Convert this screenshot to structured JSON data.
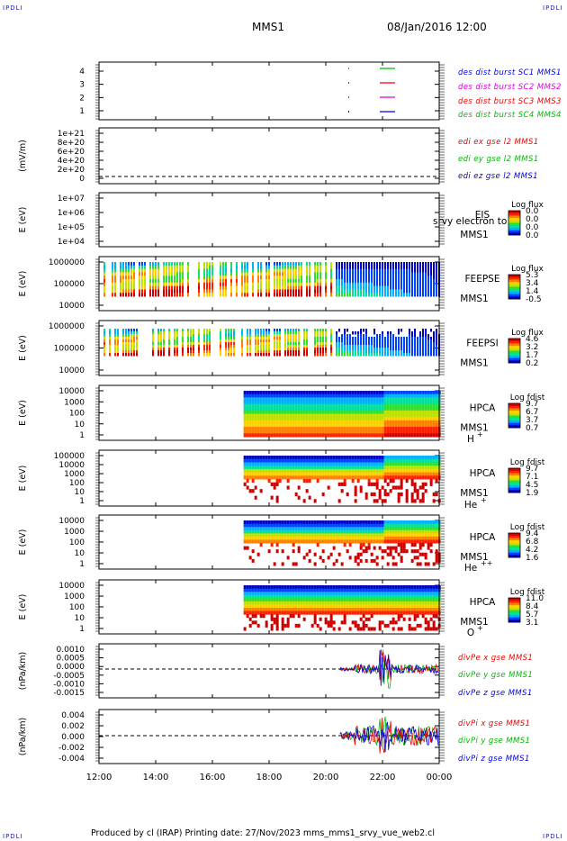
{
  "header": {
    "corner_tl": "IPDLI",
    "corner_tr": "IPDLI",
    "corner_bl": "IPDLI",
    "corner_br": "IPDLI",
    "spacecraft": "MMS1",
    "datetime": "08/Jan/2016 12:00"
  },
  "footer": {
    "text": "Produced by cl (IRAP)   Printing date: 27/Nov/2023   mms_mms1_srvy_vue_web2.cl"
  },
  "x_axis": {
    "tick_labels": [
      "12:00",
      "14:00",
      "16:00",
      "18:00",
      "20:00",
      "22:00",
      "00:00"
    ],
    "range_hours": [
      12,
      24
    ]
  },
  "colors": {
    "blue": "#0000ff",
    "red": "#ff0000",
    "magenta": "#dd00dd",
    "green": "#00cc00",
    "cmap": [
      "#0000c0",
      "#0040ff",
      "#00b0ff",
      "#00e0a0",
      "#30e030",
      "#c0e000",
      "#ffd000",
      "#ff8000",
      "#ff2000",
      "#d00000"
    ]
  },
  "panels": [
    {
      "id": "burst",
      "ylabel": "",
      "ytick_labels": [
        "4",
        "3",
        "2",
        "1"
      ],
      "legend": [
        {
          "text": "des dist burst SC1 MMS1",
          "color": "#0000dd"
        },
        {
          "text": "des dist burst SC2 MMS2",
          "color": "#dd00dd"
        },
        {
          "text": "des dist burst SC3 MMS3",
          "color": "#ee0000"
        },
        {
          "text": "des dist burst SC4 MMS4",
          "color": "#00bb00"
        }
      ]
    },
    {
      "id": "edi",
      "ylabel": "(mV/m)",
      "ytick_labels": [
        "1e+21",
        "8e+20",
        "6e+20",
        "4e+20",
        "2e+20",
        "0"
      ],
      "legend": [
        {
          "text": "edi ex gse l2 MMS1",
          "color": "#ee0000"
        },
        {
          "text": "edi ey gse l2 MMS1",
          "color": "#00bb00"
        },
        {
          "text": "edi ez gse l2 MMS1",
          "color": "#0000dd"
        }
      ]
    },
    {
      "id": "eis",
      "ylabel": "E (eV)",
      "ytick_labels": [
        "1e+07",
        "1e+06",
        "1e+05",
        "1e+04"
      ],
      "inst": [
        "EIS",
        "MMS1"
      ],
      "overlay": "srvy electron to",
      "cb_title": "Log flux",
      "cb_ticks": [
        "0.0",
        "0.0",
        "0.0",
        "0.0"
      ]
    },
    {
      "id": "feepse",
      "ylabel": "E (eV)",
      "ytick_labels": [
        "1000000",
        "100000",
        "10000"
      ],
      "inst": [
        "FEEPSE",
        "MMS1"
      ],
      "cb_title": "Log flux",
      "cb_ticks": [
        "5.3",
        "3.4",
        "1.4",
        "-0.5"
      ]
    },
    {
      "id": "feepsi",
      "ylabel": "E (eV)",
      "ytick_labels": [
        "1000000",
        "100000",
        "10000"
      ],
      "inst": [
        "FEEPSI",
        "MMS1"
      ],
      "cb_title": "Log flux",
      "cb_ticks": [
        "4.6",
        "3.2",
        "1.7",
        "0.2"
      ]
    },
    {
      "id": "hpca_h",
      "ylabel": "E (eV)",
      "ytick_labels": [
        "10000",
        "1000",
        "100",
        "10",
        "1"
      ],
      "inst": [
        "HPCA",
        "MMS1"
      ],
      "species": "H",
      "species_sup": "+",
      "cb_title": "Log fdist",
      "cb_ticks": [
        "9.7",
        "6.7",
        "3.7",
        "0.7"
      ]
    },
    {
      "id": "hpca_he",
      "ylabel": "E (eV)",
      "ytick_labels": [
        "100000",
        "10000",
        "1000",
        "100",
        "10",
        "1"
      ],
      "inst": [
        "HPCA",
        "MMS1"
      ],
      "species": "He",
      "species_sup": "+",
      "cb_title": "Log fdist",
      "cb_ticks": [
        "9.7",
        "7.1",
        "4.5",
        "1.9"
      ]
    },
    {
      "id": "hpca_he2",
      "ylabel": "E (eV)",
      "ytick_labels": [
        "10000",
        "1000",
        "100",
        "10",
        "1"
      ],
      "inst": [
        "HPCA",
        "MMS1"
      ],
      "species": "He",
      "species_sup": "++",
      "cb_title": "Log fdist",
      "cb_ticks": [
        "9.4",
        "6.8",
        "4.2",
        "1.6"
      ]
    },
    {
      "id": "hpca_o",
      "ylabel": "E (eV)",
      "ytick_labels": [
        "10000",
        "1000",
        "100",
        "10",
        "1"
      ],
      "inst": [
        "HPCA",
        "MMS1"
      ],
      "species": "O",
      "species_sup": "+",
      "cb_title": "Log fdist",
      "cb_ticks": [
        "11.0",
        "8.4",
        "5.7",
        "3.1"
      ]
    },
    {
      "id": "divpe",
      "ylabel": "(nPa/km)",
      "ytick_labels": [
        "0.0010",
        "0.0005",
        "0.0000",
        "-0.0005",
        "-0.0010",
        "-0.0015"
      ],
      "legend": [
        {
          "text": "divPe x gse MMS1",
          "color": "#ee0000"
        },
        {
          "text": "divPe y gse MMS1",
          "color": "#00bb00"
        },
        {
          "text": "divPe z gse MMS1",
          "color": "#0000dd"
        }
      ]
    },
    {
      "id": "divpi",
      "ylabel": "(nPa/km)",
      "ytick_labels": [
        "0.004",
        "0.002",
        "0.000",
        "-0.002",
        "-0.004"
      ],
      "legend": [
        {
          "text": "divPi x gse MMS1",
          "color": "#ee0000"
        },
        {
          "text": "divPi y gse MMS1",
          "color": "#00bb00"
        },
        {
          "text": "divPi z gse MMS1",
          "color": "#0000dd"
        }
      ]
    }
  ],
  "chart_data": {
    "type": "heatmap",
    "title": "MMS1",
    "x_range_hours": [
      12,
      24
    ],
    "panels": [
      {
        "name": "burst",
        "kind": "flags",
        "values": [
          1,
          2,
          3,
          4
        ]
      },
      {
        "name": "edi",
        "kind": "line",
        "values": "zero / no data"
      },
      {
        "name": "EIS",
        "kind": "spectrogram",
        "values": "empty"
      },
      {
        "name": "FEEPSE",
        "kind": "spectrogram",
        "data_start_hour": 12.0
      },
      {
        "name": "FEEPSI",
        "kind": "spectrogram",
        "data_start_hour": 12.0
      },
      {
        "name": "HPCA H+",
        "kind": "spectrogram",
        "data_start_hour": 17.1
      },
      {
        "name": "HPCA He+",
        "kind": "spectrogram",
        "data_start_hour": 17.1
      },
      {
        "name": "HPCA He++",
        "kind": "spectrogram",
        "data_start_hour": 17.1
      },
      {
        "name": "HPCA O+",
        "kind": "spectrogram",
        "data_start_hour": 17.1
      },
      {
        "name": "divPe",
        "kind": "line",
        "data_start_hour": 20.5
      },
      {
        "name": "divPi",
        "kind": "line",
        "data_start_hour": 20.5
      }
    ]
  }
}
